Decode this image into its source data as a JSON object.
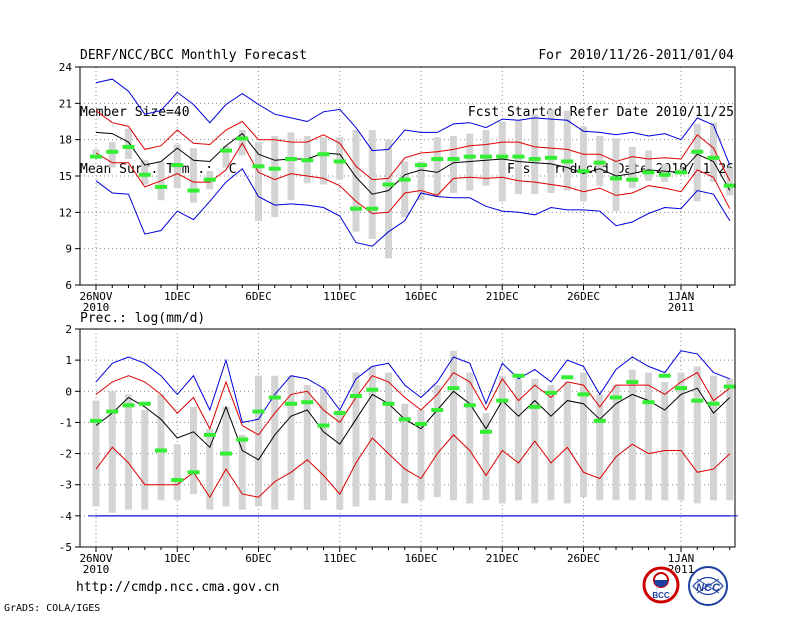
{
  "header": {
    "left": [
      "DERF/NCC/BCC Monthly Forecast",
      "Member Size=40",
      "Mean Surf. Temp.: °C"
    ],
    "right": [
      "For 2010/11/26-2011/01/04",
      "Fcst Started Refer Date 2010/11/25",
      "Fcst Produced Date 2010/11/26"
    ]
  },
  "footer": {
    "url": "http://cmdp.ncc.cma.gov.cn",
    "credit": "GrADS: COLA/IGES",
    "logo_bcc_text": "BCC",
    "logo_ncc_text": "NCC"
  },
  "colors": {
    "envelope": "#0000dd",
    "bounds": "#dd0000",
    "mean": "#000000",
    "median": "#33ee33",
    "box": "#d4d4d4",
    "grid": "#888888"
  },
  "chart_data": [
    {
      "type": "box-ensemble",
      "title": "Mean Surf. Temp.: °C",
      "ylim": [
        6,
        24
      ],
      "yticks": [
        6,
        9,
        12,
        15,
        18,
        21,
        24
      ],
      "xticks": [
        {
          "day": 0,
          "label": "26NOV",
          "sub": "2010"
        },
        {
          "day": 5,
          "label": "1DEC"
        },
        {
          "day": 10,
          "label": "6DEC"
        },
        {
          "day": 15,
          "label": "11DEC"
        },
        {
          "day": 20,
          "label": "16DEC"
        },
        {
          "day": 25,
          "label": "21DEC"
        },
        {
          "day": 30,
          "label": "26DEC"
        },
        {
          "day": 36,
          "label": "1JAN",
          "sub": "2011"
        }
      ],
      "series": [
        {
          "name": "max",
          "values": [
            22.7,
            23,
            22,
            20.1,
            20.4,
            21.9,
            20.9,
            19.4,
            20.9,
            21.8,
            20.9,
            20.1,
            19.8,
            19.5,
            20.3,
            20.5,
            19,
            17.1,
            17.2,
            18.8,
            18.6,
            18.6,
            19.3,
            19.4,
            19,
            19.7,
            19.6,
            19.8,
            19.7,
            19.6,
            18.7,
            18.6,
            18.4,
            18.6,
            18.3,
            18.5,
            18,
            19.8,
            19.2,
            15.9
          ]
        },
        {
          "name": "upper",
          "values": [
            20.4,
            19.4,
            19.1,
            17.2,
            17.5,
            18.8,
            17.7,
            17.6,
            18.8,
            19.5,
            18,
            18,
            17.8,
            17.8,
            18.4,
            17.7,
            15.8,
            14.7,
            14.8,
            16.5,
            16.9,
            17,
            17.2,
            17.5,
            17.6,
            17.8,
            17.8,
            17.4,
            17.3,
            17.2,
            16.8,
            16.8,
            16.2,
            16.6,
            16.4,
            16.5,
            16.4,
            18.4,
            17.3,
            14.6
          ]
        },
        {
          "name": "mean",
          "values": [
            18.6,
            18.5,
            17.8,
            15.9,
            16.2,
            17.3,
            16.3,
            16.2,
            17.5,
            18.5,
            16.8,
            16.3,
            16.4,
            16.4,
            16.9,
            16.8,
            14.9,
            13.5,
            13.8,
            15.1,
            15.5,
            15.3,
            16.1,
            16.2,
            16.3,
            16.4,
            16.2,
            16.1,
            16,
            15.7,
            15.2,
            15.6,
            15,
            15.2,
            15.5,
            15.4,
            15.3,
            16.8,
            16.2,
            13.8
          ]
        },
        {
          "name": "lower",
          "values": [
            16.9,
            16.1,
            16.1,
            14.1,
            14.6,
            15.2,
            14.5,
            14.5,
            15.5,
            17.7,
            15.3,
            14.7,
            15.2,
            15,
            14.8,
            14.2,
            12.9,
            11.9,
            12,
            13.6,
            13.8,
            13.4,
            14.8,
            14.9,
            14.8,
            14.9,
            14.6,
            14.5,
            14.3,
            14.1,
            13.7,
            14,
            13.4,
            13.6,
            14.2,
            14,
            13.7,
            15.5,
            14.9,
            12.3
          ]
        },
        {
          "name": "min",
          "values": [
            14.6,
            13.6,
            13.5,
            10.2,
            10.5,
            12.1,
            11.4,
            12.9,
            14.5,
            15.6,
            13.3,
            12.6,
            12.7,
            12.6,
            12.4,
            11.7,
            9.5,
            9.2,
            10.4,
            11.3,
            13.6,
            13.3,
            13.2,
            13.2,
            12.5,
            12.1,
            12,
            11.8,
            12.4,
            12.2,
            12.2,
            12.1,
            10.9,
            11.2,
            11.9,
            12.4,
            12.3,
            13.8,
            13.5,
            11.3
          ]
        },
        {
          "name": "box_top",
          "values": [
            17.2,
            17.8,
            18.9,
            16.3,
            16.2,
            17.6,
            17.3,
            15.4,
            17.5,
            18.8,
            17.8,
            18.3,
            18.6,
            18.3,
            18.2,
            18.2,
            18.8,
            18.8,
            18,
            16.2,
            16.2,
            18.2,
            18.3,
            18.5,
            18.8,
            19.5,
            19.6,
            20.1,
            20.5,
            20.4,
            19.1,
            18.3,
            18.1,
            17.4,
            17.1,
            16,
            15.6,
            19.3,
            19.4,
            15.7
          ]
        },
        {
          "name": "box_bottom",
          "values": [
            16.8,
            15.7,
            16.4,
            14.3,
            13,
            14,
            12.8,
            13.9,
            15.7,
            16.7,
            11.3,
            11.6,
            13,
            14.4,
            14.3,
            14.7,
            10.4,
            9.8,
            8.2,
            11.6,
            13,
            13.3,
            13.6,
            13.8,
            14.2,
            12.9,
            13.5,
            13.5,
            13.6,
            13.8,
            12.9,
            14.2,
            12.1,
            14,
            14.6,
            14.5,
            15.3,
            12.9,
            14.5,
            13.4
          ]
        },
        {
          "name": "median",
          "values": [
            16.6,
            17,
            17.4,
            15.1,
            14.1,
            15.9,
            13.8,
            14.7,
            17.1,
            18.1,
            15.8,
            15.6,
            16.4,
            16.3,
            16.8,
            16.2,
            12.3,
            12.3,
            14.3,
            14.7,
            15.9,
            16.4,
            16.4,
            16.6,
            16.6,
            16.6,
            16.6,
            16.4,
            16.5,
            16.2,
            15.4,
            16.1,
            14.8,
            14.7,
            15.3,
            15.1,
            15.3,
            17,
            16.5,
            14.2
          ]
        }
      ]
    },
    {
      "type": "box-ensemble",
      "title": "Prec.: log(mm/d)",
      "ylim": [
        -5,
        2
      ],
      "yticks": [
        -5,
        -4,
        -3,
        -2,
        -1,
        0,
        1,
        2
      ],
      "floor": -4,
      "xticks": [
        {
          "day": 0,
          "label": "26NOV",
          "sub": "2010"
        },
        {
          "day": 5,
          "label": "1DEC"
        },
        {
          "day": 10,
          "label": "6DEC"
        },
        {
          "day": 15,
          "label": "11DEC"
        },
        {
          "day": 20,
          "label": "16DEC"
        },
        {
          "day": 25,
          "label": "21DEC"
        },
        {
          "day": 30,
          "label": "26DEC"
        },
        {
          "day": 36,
          "label": "1JAN",
          "sub": "2011"
        }
      ],
      "series": [
        {
          "name": "max",
          "values": [
            0.3,
            0.9,
            1.1,
            0.9,
            0.5,
            -0.1,
            0.5,
            -0.6,
            1,
            -1,
            -0.9,
            -0.1,
            0.5,
            0.4,
            0.1,
            -0.6,
            0.4,
            0.8,
            0.9,
            0.2,
            -0.2,
            0.3,
            1.1,
            0.9,
            -0.4,
            0.9,
            0.4,
            0.7,
            0.3,
            1,
            0.8,
            -0.1,
            0.7,
            1.1,
            0.8,
            0.6,
            1.3,
            1.2,
            0.6,
            0.4
          ]
        },
        {
          "name": "upper",
          "values": [
            -0.1,
            0.3,
            0.5,
            0.3,
            -0.1,
            -0.7,
            -0.2,
            -1.2,
            0.3,
            -1.1,
            -1.4,
            -0.7,
            -0.1,
            0,
            -0.6,
            -1,
            -0.2,
            0.5,
            0.3,
            -0.2,
            -0.6,
            -0.1,
            0.6,
            0.3,
            -0.6,
            0.4,
            -0.3,
            0.2,
            -0.2,
            0.3,
            0.2,
            -0.5,
            0.2,
            0.2,
            0.2,
            -0.1,
            0.3,
            0.6,
            -0.3,
            0.1
          ]
        },
        {
          "name": "mean",
          "values": [
            -1.1,
            -0.7,
            -0.2,
            -0.5,
            -0.9,
            -1.5,
            -1.3,
            -1.8,
            -0.5,
            -1.9,
            -2.2,
            -1.4,
            -0.8,
            -0.6,
            -1.3,
            -1.7,
            -0.9,
            -0.1,
            -0.4,
            -0.9,
            -1.2,
            -0.6,
            0,
            -0.4,
            -1.2,
            -0.3,
            -0.8,
            -0.3,
            -0.8,
            -0.3,
            -0.4,
            -0.9,
            -0.4,
            -0.1,
            -0.3,
            -0.6,
            -0.1,
            0.1,
            -0.7,
            -0.2
          ]
        },
        {
          "name": "lower",
          "values": [
            -2.5,
            -1.8,
            -2.3,
            -3,
            -3,
            -3,
            -2.6,
            -3.4,
            -2.5,
            -3.3,
            -3.4,
            -2.9,
            -2.6,
            -2.2,
            -2.7,
            -3.3,
            -2.3,
            -1.5,
            -2,
            -2.5,
            -2.8,
            -2,
            -1.4,
            -1.9,
            -2.7,
            -1.9,
            -2.3,
            -1.6,
            -2.3,
            -1.8,
            -2.6,
            -2.8,
            -2.1,
            -1.7,
            -2,
            -1.9,
            -1.9,
            -2.6,
            -2.5,
            -2
          ]
        },
        {
          "name": "min",
          "values": [
            -4,
            -4,
            -4,
            -4,
            -4,
            -4,
            -4,
            -4,
            -4,
            -4,
            -4,
            -4,
            -4,
            -4,
            -4,
            -4,
            -4,
            -4,
            -4,
            -4,
            -4,
            -4,
            -4,
            -4,
            -4,
            -4,
            -4,
            -4,
            -4,
            -4,
            -4,
            -4,
            -4,
            -4,
            -4,
            -4,
            -4,
            -4,
            -4,
            -4
          ]
        },
        {
          "name": "box_top",
          "values": [
            -0.3,
            0,
            -0.1,
            -0.6,
            -0.1,
            -1.7,
            -0.5,
            -1.2,
            -0.5,
            -1.4,
            0.5,
            0.5,
            0.5,
            0.2,
            0.1,
            -0.6,
            0.6,
            0.8,
            0.6,
            -0.4,
            -0.6,
            0.2,
            1.3,
            0.6,
            -0.7,
            0.5,
            0.4,
            0.4,
            0.2,
            0.3,
            0.6,
            -0.1,
            0.2,
            0.7,
            0.6,
            0.3,
            0.6,
            0.8,
            0.5,
            0.4
          ]
        },
        {
          "name": "box_bottom",
          "values": [
            -3.7,
            -3.9,
            -3.8,
            -3.8,
            -3.5,
            -3.5,
            -3.3,
            -3.8,
            -3.7,
            -3.8,
            -3.7,
            -3.8,
            -3.5,
            -3.8,
            -3.5,
            -3.8,
            -3.7,
            -3.5,
            -3.5,
            -3.6,
            -3.5,
            -3.4,
            -3.5,
            -3.6,
            -3.5,
            -3.6,
            -3.5,
            -3.6,
            -3.5,
            -3.6,
            -3.4,
            -3.5,
            -3.5,
            -3.5,
            -3.5,
            -3.5,
            -3.5,
            -3.6,
            -3.5,
            -3.5
          ]
        },
        {
          "name": "median",
          "values": [
            -0.95,
            -0.65,
            -0.45,
            -0.4,
            -1.9,
            -2.85,
            -2.6,
            -1.4,
            -2.0,
            -1.55,
            -0.65,
            -0.2,
            -0.4,
            -0.35,
            -1.1,
            -0.7,
            -0.15,
            0.05,
            -0.4,
            -0.9,
            -1.05,
            -0.6,
            0.1,
            -0.45,
            -1.3,
            -0.3,
            0.5,
            -0.5,
            -0.05,
            0.45,
            -0.1,
            -0.95,
            -0.2,
            0.3,
            -0.35,
            0.5,
            0.1,
            -0.3,
            -0.4,
            0.15
          ]
        }
      ]
    }
  ]
}
